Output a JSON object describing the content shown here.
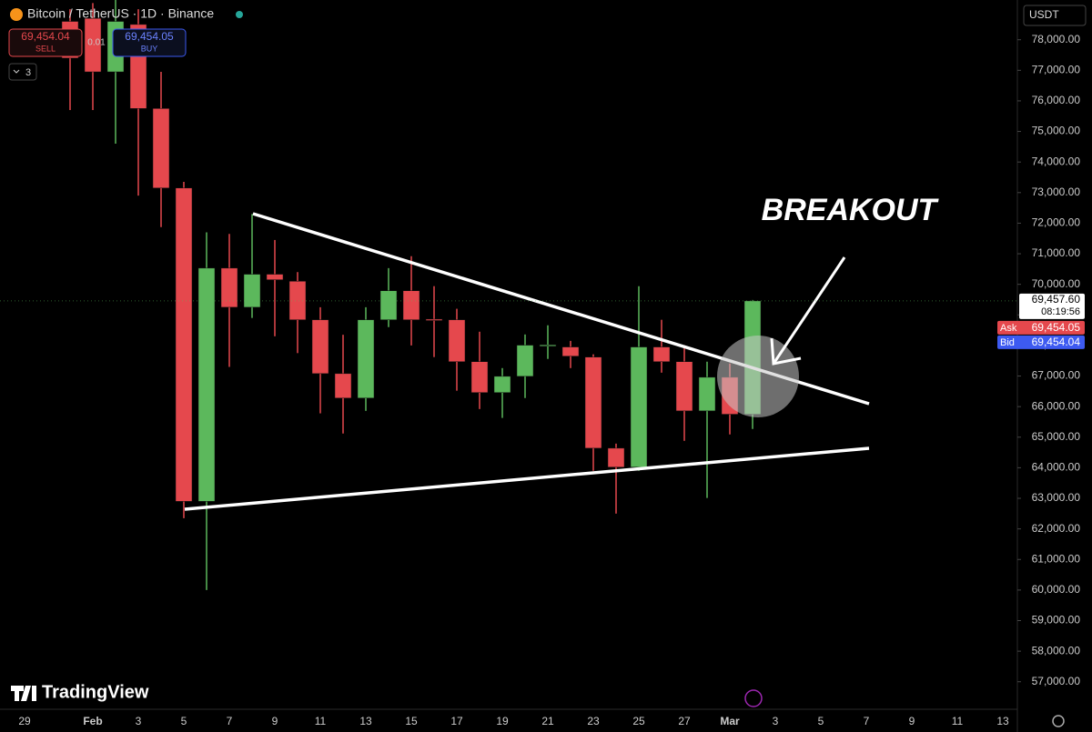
{
  "toolbar": {
    "symbol": "Bitcoin / TetherUS · 1D · Binance",
    "sell_price": "69,454.04",
    "sell": "SELL",
    "quantity": "0.01",
    "buy_price": "69,454.05",
    "buy": "BUY",
    "indicators": "3",
    "currency": "USDT"
  },
  "watermark": "TradingView",
  "chart_data": {
    "type": "candlestick",
    "annotation": "BREAKOUT",
    "categories": [
      "29",
      null,
      null,
      "Feb",
      null,
      "3",
      null,
      "5",
      null,
      "7",
      null,
      "9",
      null,
      "11",
      null,
      "13",
      null,
      "15",
      null,
      "17",
      null,
      "19",
      null,
      "21",
      null,
      "23",
      null,
      "25",
      null,
      "27",
      null,
      "Mar",
      null,
      "3",
      null,
      "5",
      null,
      "7",
      null,
      "9",
      null,
      "11",
      null,
      "13"
    ],
    "open": [
      null,
      null,
      78600,
      78700,
      76950,
      78500,
      75750,
      73150,
      62900,
      70530,
      69250,
      70330,
      70100,
      68840,
      67080,
      66280,
      68840,
      69790,
      68860,
      68840,
      67470,
      66460,
      66990,
      67990,
      67950,
      67620,
      64640,
      64020,
      67950,
      67470,
      65860,
      66960,
      65750,
      null,
      null,
      null,
      null,
      null,
      null,
      null,
      null,
      null,
      null,
      null
    ],
    "high": [
      null,
      null,
      79000,
      79200,
      79300,
      79000,
      76950,
      73350,
      71700,
      71650,
      72300,
      71450,
      70400,
      69250,
      68350,
      69250,
      70530,
      70920,
      69940,
      69200,
      68450,
      67260,
      68360,
      68660,
      68150,
      67710,
      64790,
      69940,
      68840,
      68010,
      67470,
      67410,
      69490,
      null,
      null,
      null,
      null,
      null,
      null,
      null,
      null,
      null,
      null,
      null
    ],
    "low": [
      null,
      null,
      75700,
      75700,
      74600,
      72900,
      71870,
      62350,
      60000,
      67300,
      68900,
      68300,
      67750,
      65780,
      65120,
      65860,
      68600,
      68000,
      67620,
      66520,
      65920,
      65630,
      66280,
      67560,
      67260,
      63900,
      62500,
      63900,
      67110,
      64880,
      63010,
      65090,
      65270,
      null,
      null,
      null,
      null,
      null,
      null,
      null,
      null,
      null,
      null,
      null
    ],
    "close": [
      null,
      null,
      77400,
      76950,
      78600,
      75750,
      73150,
      62900,
      70530,
      69250,
      70330,
      70150,
      68840,
      67080,
      66280,
      68840,
      69790,
      68840,
      68820,
      67470,
      66460,
      66990,
      68010,
      68020,
      67650,
      64640,
      64020,
      67950,
      67470,
      65860,
      66960,
      65750,
      69457.6,
      null,
      null,
      null,
      null,
      null,
      null,
      null,
      null,
      null,
      null,
      null
    ],
    "up_color": "#5cb85c",
    "down_color": "#e5484d",
    "ylim": [
      56100,
      79300
    ],
    "yticks": [
      {
        "value": 57000,
        "label": "57,000.00"
      },
      {
        "value": 58000,
        "label": "58,000.00"
      },
      {
        "value": 59000,
        "label": "59,000.00"
      },
      {
        "value": 60000,
        "label": "60,000.00"
      },
      {
        "value": 61000,
        "label": "61,000.00"
      },
      {
        "value": 62000,
        "label": "62,000.00"
      },
      {
        "value": 63000,
        "label": "63,000.00"
      },
      {
        "value": 64000,
        "label": "64,000.00"
      },
      {
        "value": 65000,
        "label": "65,000.00"
      },
      {
        "value": 66000,
        "label": "66,000.00"
      },
      {
        "value": 67000,
        "label": "67,000.00"
      },
      {
        "value": 68000,
        "label": "68,000.00"
      },
      {
        "value": 69000,
        "label": "69,000.00"
      },
      {
        "value": 70000,
        "label": "70,000.00"
      },
      {
        "value": 71000,
        "label": "71,000.00"
      },
      {
        "value": 72000,
        "label": "72,000.00"
      },
      {
        "value": 73000,
        "label": "73,000.00"
      },
      {
        "value": 74000,
        "label": "74,000.00"
      },
      {
        "value": 75000,
        "label": "75,000.00"
      },
      {
        "value": 76000,
        "label": "76,000.00"
      },
      {
        "value": 77000,
        "label": "77,000.00"
      },
      {
        "value": 78000,
        "label": "78,000.00"
      }
    ],
    "last_price": {
      "value": 69457.6,
      "label": "69,457.60",
      "countdown": "08:19:56"
    },
    "ask": {
      "name": "Ask",
      "label": "69,454.05"
    },
    "bid": {
      "name": "Bid",
      "label": "69,454.04"
    }
  }
}
